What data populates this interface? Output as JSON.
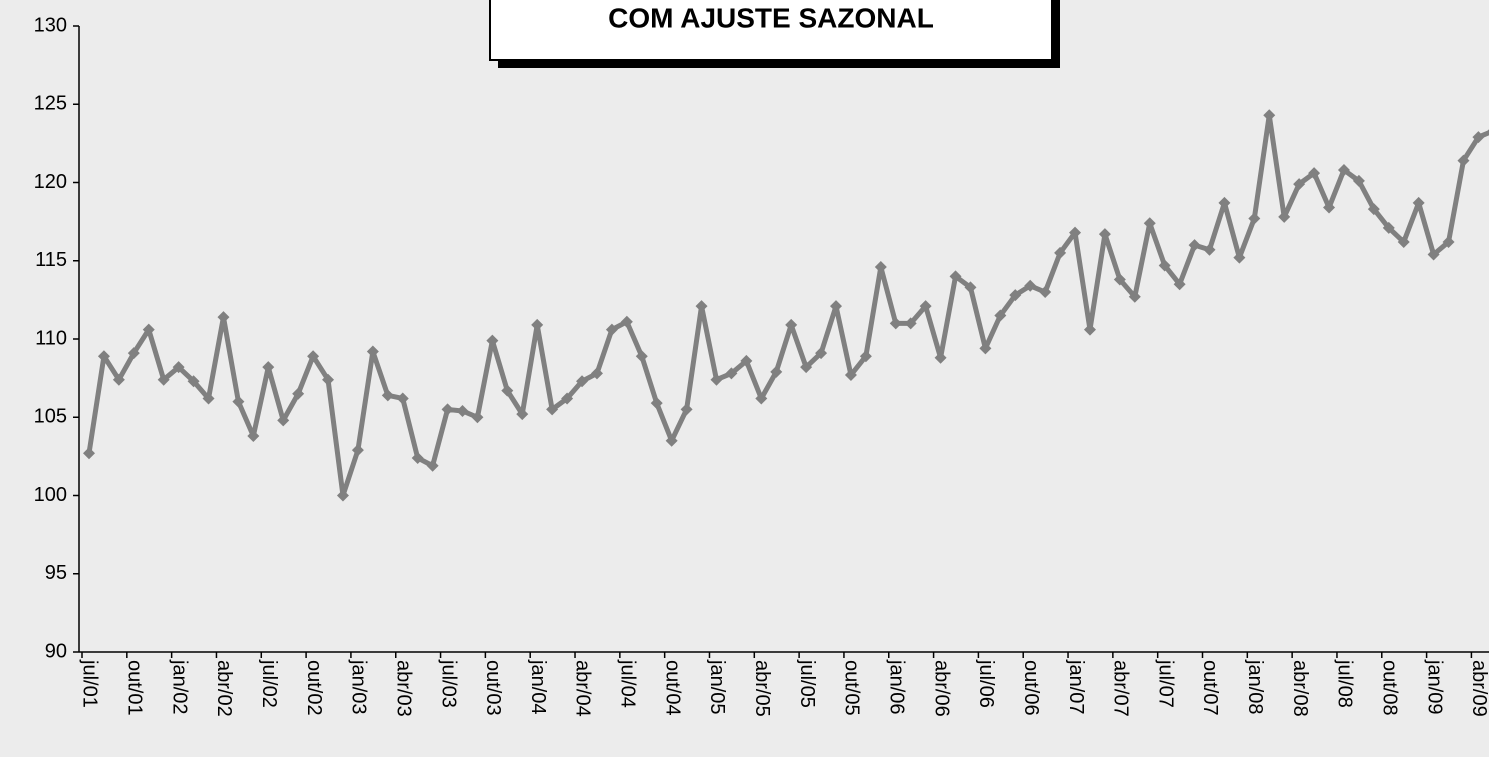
{
  "chart_data": {
    "type": "line",
    "title": "COM AJUSTE SAZONAL",
    "categories": [
      "jul/01",
      null,
      null,
      "out/01",
      null,
      null,
      "jan/02",
      null,
      null,
      "abr/02",
      null,
      null,
      "jul/02",
      null,
      null,
      "out/02",
      null,
      null,
      "jan/03",
      null,
      null,
      "abr/03",
      null,
      null,
      "jul/03",
      null,
      null,
      "out/03",
      null,
      null,
      "jan/04",
      null,
      null,
      "abr/04",
      null,
      null,
      "jul/04",
      null,
      null,
      "out/04",
      null,
      null,
      "jan/05",
      null,
      null,
      "abr/05",
      null,
      null,
      "jul/05",
      null,
      null,
      "out/05",
      null,
      null,
      "jan/06",
      null,
      null,
      "abr/06",
      null,
      null,
      "jul/06",
      null,
      null,
      "out/06",
      null,
      null,
      "jan/07",
      null,
      null,
      "abr/07",
      null,
      null,
      "jul/07",
      null,
      null,
      "out/07",
      null,
      null,
      "jan/08",
      null,
      null,
      "abr/08",
      null,
      null,
      "jul/08",
      null,
      null,
      "out/08",
      null,
      null,
      "jan/09",
      null,
      null,
      "abr/09",
      null
    ],
    "series": [
      {
        "color": "#808080",
        "values": [
          102.7,
          108.9,
          107.4,
          109.1,
          110.6,
          107.4,
          108.2,
          107.3,
          106.2,
          111.4,
          106.0,
          103.8,
          108.2,
          104.8,
          106.5,
          108.9,
          107.4,
          100.0,
          102.9,
          109.2,
          106.4,
          106.2,
          102.4,
          101.9,
          105.5,
          105.4,
          105.0,
          109.9,
          106.7,
          105.2,
          110.9,
          105.5,
          106.2,
          107.3,
          107.8,
          110.6,
          111.1,
          108.9,
          105.9,
          103.5,
          105.5,
          112.1,
          107.4,
          107.8,
          108.6,
          106.2,
          107.9,
          110.9,
          108.2,
          109.1,
          112.1,
          107.7,
          108.9,
          114.6,
          111.0,
          111.0,
          112.1,
          108.8,
          114.0,
          113.3,
          109.4,
          111.5,
          112.8,
          113.4,
          113.0,
          115.5,
          116.8,
          110.6,
          116.7,
          113.8,
          112.7,
          117.4,
          114.7,
          113.5,
          116.0,
          115.7,
          118.7,
          115.2,
          117.7,
          124.3,
          117.8,
          119.9,
          120.6,
          118.4,
          120.8,
          120.1,
          118.3,
          117.1,
          116.2,
          118.7,
          115.4,
          116.2,
          121.4,
          122.9,
          123.3
        ]
      }
    ],
    "ylim": [
      90,
      130
    ],
    "yticks": [
      90,
      95,
      100,
      105,
      110,
      115,
      120,
      125,
      130
    ]
  }
}
